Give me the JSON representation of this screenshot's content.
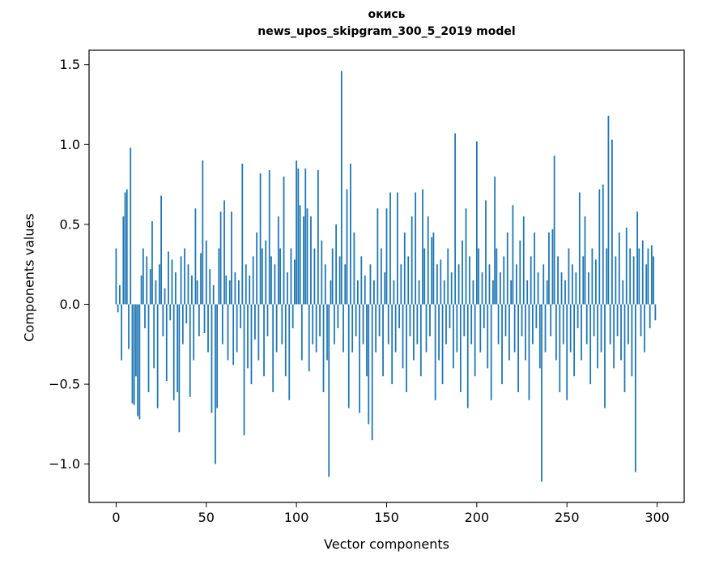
{
  "chart_data": {
    "type": "bar",
    "title": "окись",
    "subtitle": "news_upos_skipgram_300_5_2019 model",
    "xlabel": "Vector components",
    "ylabel": "Components values",
    "xlim": [
      -15,
      315
    ],
    "ylim": [
      -1.24,
      1.59
    ],
    "grid": false,
    "legend": "none",
    "bar_color": "#1f77b4",
    "axis_color": "#000000",
    "xtick_values": [
      0,
      50,
      100,
      150,
      200,
      250,
      300
    ],
    "xtick_labels": [
      "0",
      "50",
      "100",
      "150",
      "200",
      "250",
      "300"
    ],
    "ytick_values": [
      -1.0,
      -0.5,
      0.0,
      0.5,
      1.0,
      1.5
    ],
    "ytick_labels": [
      "−1.0",
      "−0.5",
      "0.0",
      "0.5",
      "1.0",
      "1.5"
    ],
    "x_start": 0,
    "bar_width_data": 0.8,
    "values": [
      0.35,
      -0.05,
      0.12,
      -0.35,
      0.55,
      0.7,
      0.72,
      -0.28,
      0.98,
      -0.62,
      -0.63,
      -0.45,
      -0.7,
      -0.72,
      0.18,
      0.35,
      -0.15,
      0.3,
      -0.55,
      0.22,
      0.52,
      -0.4,
      0.15,
      -0.65,
      0.25,
      0.68,
      -0.2,
      0.1,
      -0.48,
      0.33,
      -0.1,
      0.28,
      -0.6,
      0.2,
      -0.55,
      -0.8,
      0.3,
      -0.25,
      0.35,
      -0.12,
      0.25,
      -0.58,
      0.18,
      -0.35,
      0.6,
      0.15,
      -0.2,
      0.32,
      0.9,
      -0.18,
      0.4,
      -0.3,
      0.22,
      -0.68,
      0.12,
      -1.0,
      -0.65,
      0.35,
      0.58,
      -0.25,
      0.65,
      0.18,
      -0.35,
      0.15,
      0.58,
      -0.38,
      0.2,
      -0.3,
      0.15,
      -0.15,
      0.88,
      -0.82,
      0.25,
      -0.4,
      0.18,
      -0.5,
      0.3,
      -0.22,
      0.45,
      -0.35,
      0.82,
      0.35,
      -0.45,
      0.4,
      -0.2,
      0.84,
      0.3,
      -0.55,
      0.25,
      -0.3,
      0.55,
      0.35,
      -0.25,
      0.8,
      -0.45,
      0.2,
      -0.6,
      0.35,
      -0.15,
      0.28,
      0.9,
      0.85,
      0.62,
      -0.35,
      0.55,
      0.85,
      0.6,
      -0.42,
      0.55,
      -0.25,
      0.35,
      -0.3,
      0.84,
      -0.2,
      0.4,
      -0.55,
      0.25,
      -0.35,
      -1.08,
      0.15,
      0.35,
      -0.25,
      0.5,
      -0.15,
      0.3,
      1.46,
      -0.3,
      0.25,
      0.72,
      -0.65,
      0.88,
      -0.3,
      0.45,
      -0.2,
      0.15,
      -0.68,
      0.3,
      -0.25,
      0.18,
      -0.45,
      -0.75,
      0.25,
      -0.85,
      0.15,
      -0.3,
      0.6,
      -0.2,
      0.35,
      -0.45,
      0.2,
      0.6,
      -0.25,
      0.7,
      -0.5,
      0.15,
      -0.3,
      0.7,
      -0.15,
      0.25,
      -0.4,
      0.45,
      -0.55,
      0.3,
      -0.2,
      0.55,
      -0.35,
      0.7,
      -0.25,
      0.15,
      -0.45,
      0.72,
      0.35,
      -0.3,
      0.55,
      -0.2,
      0.42,
      0.45,
      -0.6,
      0.25,
      -0.35,
      0.28,
      -0.5,
      0.15,
      -0.25,
      0.35,
      -0.15,
      0.2,
      -0.4,
      1.07,
      -0.3,
      0.25,
      -0.55,
      0.4,
      -0.2,
      0.6,
      -0.65,
      0.3,
      -0.25,
      0.15,
      -0.45,
      1.02,
      0.35,
      -0.3,
      0.2,
      -0.15,
      0.65,
      -0.4,
      0.25,
      -0.6,
      0.15,
      0.8,
      0.35,
      -0.25,
      0.2,
      -0.5,
      0.3,
      -0.2,
      0.45,
      -0.35,
      0.15,
      0.62,
      -0.3,
      0.25,
      -0.55,
      0.4,
      -0.2,
      0.55,
      -0.35,
      0.15,
      -0.6,
      0.3,
      -0.25,
      0.45,
      -0.15,
      0.2,
      -0.4,
      -1.11,
      0.25,
      -0.3,
      0.15,
      0.45,
      -0.2,
      0.47,
      0.93,
      -0.35,
      0.3,
      -0.55,
      0.2,
      -0.25,
      0.15,
      -0.6,
      0.35,
      -0.3,
      0.25,
      -0.45,
      0.2,
      -0.15,
      0.7,
      -0.35,
      0.3,
      0.55,
      -0.25,
      0.2,
      -0.5,
      0.35,
      -0.2,
      0.28,
      -0.4,
      0.72,
      -0.3,
      0.75,
      -0.65,
      0.35,
      1.18,
      -0.25,
      1.03,
      -0.4,
      0.3,
      -0.2,
      0.45,
      -0.35,
      0.15,
      -0.55,
      0.48,
      -0.25,
      0.35,
      -0.45,
      0.3,
      -1.05,
      0.58,
      0.35,
      -0.2,
      0.4,
      -0.3,
      0.25,
      0.35,
      -0.15,
      0.37,
      0.3,
      -0.1
    ]
  }
}
